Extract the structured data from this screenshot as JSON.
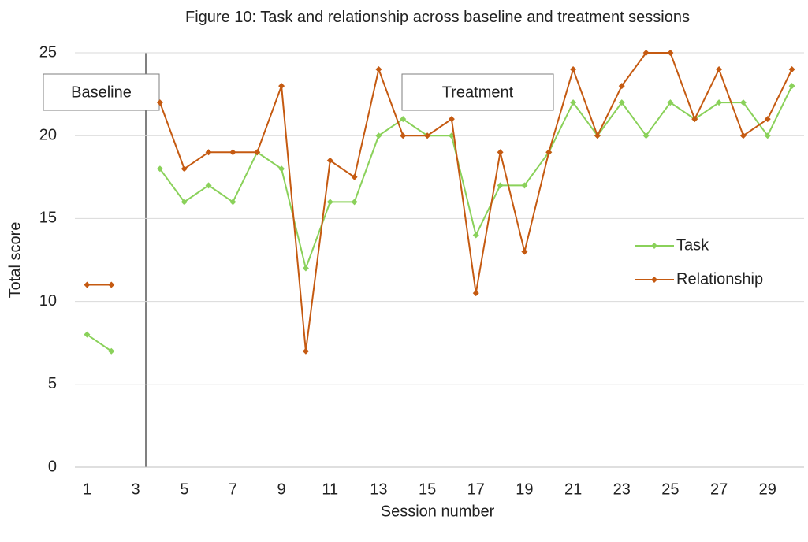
{
  "chart_data": {
    "type": "line",
    "title": "Figure 10: Task and relationship across baseline and treatment sessions",
    "x_label": "Session number",
    "y_label": "Total score",
    "x": [
      1,
      2,
      3,
      4,
      5,
      6,
      7,
      8,
      9,
      10,
      11,
      12,
      13,
      14,
      15,
      16,
      17,
      18,
      19,
      20,
      21,
      22,
      23,
      24,
      25,
      26,
      27,
      28,
      29,
      30
    ],
    "xlim": [
      0.5,
      30.5
    ],
    "xticks": [
      1,
      3,
      5,
      7,
      9,
      11,
      13,
      15,
      17,
      19,
      21,
      23,
      25,
      27,
      29
    ],
    "ylim": [
      0,
      25
    ],
    "yticks": [
      0,
      5,
      10,
      15,
      20,
      25
    ],
    "grid": true,
    "legend": "right",
    "annotations": [
      "Baseline",
      "Treatment"
    ],
    "series": [
      {
        "name": "Task",
        "color": "#8ad15a",
        "values": [
          8,
          7,
          null,
          18,
          16,
          17,
          16,
          19,
          18,
          12,
          16,
          16,
          20,
          21,
          20,
          20,
          14,
          17,
          17,
          19,
          22,
          20,
          22,
          20,
          22,
          21,
          22,
          22,
          20,
          23
        ]
      },
      {
        "name": "Relationship",
        "color": "#c55a11",
        "values": [
          11,
          11,
          null,
          22,
          18,
          19,
          19,
          19,
          23,
          7,
          18.5,
          17.5,
          24,
          20,
          20,
          21,
          10.5,
          19,
          13,
          19,
          24,
          20,
          23,
          25,
          25,
          21,
          24,
          20,
          21,
          24
        ]
      }
    ]
  }
}
